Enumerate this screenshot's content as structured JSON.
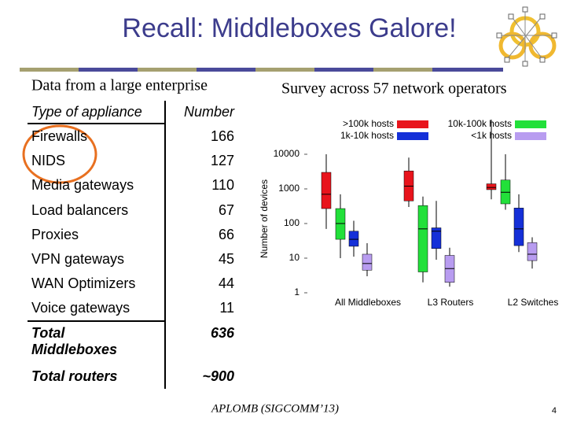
{
  "title": "Recall: Middleboxes Galore!",
  "left_caption": "Data from a large enterprise",
  "right_caption": "Survey across 57 network operators",
  "table": {
    "header": [
      "Type of appliance",
      "Number"
    ],
    "rows": [
      [
        "Firewalls",
        166
      ],
      [
        "NIDS",
        127
      ],
      [
        "Media gateways",
        110
      ],
      [
        "Load balancers",
        67
      ],
      [
        "Proxies",
        66
      ],
      [
        "VPN gateways",
        45
      ],
      [
        "WAN Optimizers",
        44
      ],
      [
        "Voice gateways",
        11
      ]
    ],
    "totals": [
      [
        "Total Middleboxes",
        636
      ],
      [
        "Total routers",
        "~900"
      ]
    ]
  },
  "chart_data": {
    "type": "box",
    "y_label": "Number of devices",
    "log_scale": true,
    "ylim": [
      1,
      100000
    ],
    "yticks": [
      1,
      10,
      100,
      1000,
      10000
    ],
    "categories": [
      "All Middleboxes",
      "L3 Routers",
      "L2 Switches"
    ],
    "series": [
      {
        "name": ">100k hosts",
        "color": "#e8141c",
        "values": [
          {
            "min": 70,
            "q1": 270,
            "median": 700,
            "q3": 3000,
            "max": 10000
          },
          {
            "min": 300,
            "q1": 450,
            "median": 1200,
            "q3": 3300,
            "max": 8000
          },
          {
            "min": 500,
            "q1": 950,
            "median": 1100,
            "q3": 1400,
            "max": 100000
          }
        ]
      },
      {
        "name": "10k-100k hosts",
        "color": "#22e03a",
        "values": [
          {
            "min": 10,
            "q1": 35,
            "median": 100,
            "q3": 270,
            "max": 700
          },
          {
            "min": 2,
            "q1": 4,
            "median": 70,
            "q3": 330,
            "max": 600
          },
          {
            "min": 250,
            "q1": 370,
            "median": 800,
            "q3": 1800,
            "max": 10000
          }
        ]
      },
      {
        "name": "1k-10k hosts",
        "color": "#1530d8",
        "values": [
          {
            "min": 11,
            "q1": 22,
            "median": 35,
            "q3": 60,
            "max": 120
          },
          {
            "min": 9,
            "q1": 19,
            "median": 60,
            "q3": 75,
            "max": 450
          },
          {
            "min": 15,
            "q1": 23,
            "median": 70,
            "q3": 280,
            "max": 700
          }
        ]
      },
      {
        "name": "<1k hosts",
        "color": "#b89cf0",
        "values": [
          {
            "min": 3,
            "q1": 4.5,
            "median": 7,
            "q3": 13,
            "max": 27
          },
          {
            "min": 1.5,
            "q1": 2,
            "median": 5,
            "q3": 12,
            "max": 20
          },
          {
            "min": 5,
            "q1": 8.5,
            "median": 13,
            "q3": 28,
            "max": 40
          }
        ]
      }
    ]
  },
  "footer": "APLOMB (SIGCOMM’13)",
  "page_number": 4
}
